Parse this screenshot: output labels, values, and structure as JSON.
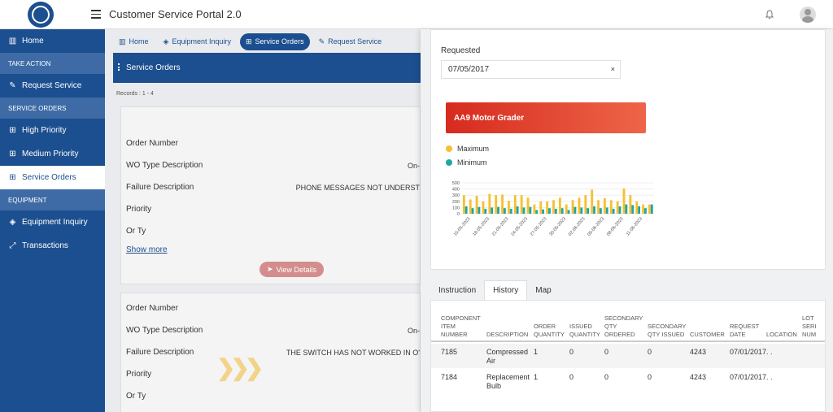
{
  "app": {
    "title": "Customer Service Portal 2.0"
  },
  "sidebar": {
    "items": [
      {
        "label": "Home",
        "icon": "bar-chart-icon"
      },
      {
        "section": "TAKE ACTION"
      },
      {
        "label": "Request Service",
        "icon": "pencil-icon"
      },
      {
        "section": "SERVICE ORDERS"
      },
      {
        "label": "High Priority",
        "icon": "grid-icon"
      },
      {
        "label": "Medium Priority",
        "icon": "grid-icon"
      },
      {
        "label": "Service Orders",
        "icon": "grid-icon",
        "active": true
      },
      {
        "section": "EQUIPMENT"
      },
      {
        "label": "Equipment Inquiry",
        "icon": "layers-icon"
      },
      {
        "label": "Transactions",
        "icon": "expand-icon"
      }
    ]
  },
  "tabs": [
    {
      "label": "Home",
      "icon": "bar-chart-icon"
    },
    {
      "label": "Equipment Inquiry",
      "icon": "layers-icon"
    },
    {
      "label": "Service Orders",
      "icon": "grid-icon",
      "active": true
    },
    {
      "label": "Request Service",
      "icon": "pencil-icon"
    }
  ],
  "orders": {
    "header": "Service Orders",
    "records": "Records : 1 - 4",
    "cards": [
      {
        "order_number_label": "Order Number",
        "wo_type_label": "WO Type Description",
        "wo_type_value": "On-",
        "failure_label": "Failure Description",
        "failure_value": "PHONE MESSAGES NOT UNDERST",
        "priority_label": "Priority",
        "or_ty_label": "Or Ty",
        "show_more": "Show more",
        "view_details": "View Details"
      },
      {
        "order_number_label": "Order Number",
        "wo_type_label": "WO Type Description",
        "wo_type_value": "On-",
        "failure_label": "Failure Description",
        "failure_value": "THE SWITCH HAS NOT WORKED IN O'",
        "priority_label": "Priority",
        "or_ty_label": "Or Ty"
      }
    ]
  },
  "detail": {
    "requested_label": "Requested",
    "requested_value": "07/05/2017",
    "clear": "×",
    "banner": "AA9 Motor Grader",
    "legend": [
      {
        "label": "Maximum",
        "color": "#f6c02f"
      },
      {
        "label": "Minimum",
        "color": "#1ea6a6"
      }
    ],
    "tabs": [
      "Instruction",
      "History",
      "Map"
    ],
    "active_tab": "History",
    "table": {
      "headers": [
        "COMPONENT ITEM NUMBER",
        "DESCRIPTION",
        "ORDER QUANTITY",
        "ISSUED QUANTITY",
        "SECONDARY QTY ORDERED",
        "SECONDARY QTY ISSUED",
        "CUSTOMER",
        "REQUEST DATE",
        "LOCATION",
        "LOT SERI NUM"
      ],
      "rows": [
        [
          "7185",
          "Compressed Air",
          "1",
          "0",
          "0",
          "0",
          "4243",
          "07/01/2017",
          ". .",
          ""
        ],
        [
          "7184",
          "Replacement Bulb",
          "1",
          "0",
          "0",
          "0",
          "4243",
          "07/01/2017",
          ". .",
          ""
        ]
      ]
    }
  },
  "chart_data": {
    "type": "bar",
    "y_ticks": [
      "500",
      "400",
      "300",
      "200",
      "100",
      "0"
    ],
    "ylim": [
      0,
      500
    ],
    "x_tick_labels": [
      "15-05-2023",
      "18-05-2023",
      "21-05-2023",
      "24-05-2023",
      "27-05-2023",
      "30-05-2023",
      "02-06-2023",
      "05-06-2023",
      "08-06-2023",
      "11-06-2023"
    ],
    "series": [
      {
        "name": "Maximum",
        "values": [
          300,
          230,
          290,
          200,
          320,
          300,
          310,
          210,
          300,
          300,
          260,
          150,
          200,
          200,
          220,
          260,
          150,
          220,
          260,
          300,
          390,
          220,
          250,
          220,
          200,
          410,
          300,
          200,
          150,
          150
        ]
      },
      {
        "name": "Minimum",
        "values": [
          120,
          90,
          110,
          80,
          100,
          110,
          90,
          80,
          120,
          100,
          110,
          60,
          70,
          90,
          80,
          90,
          60,
          110,
          100,
          90,
          120,
          90,
          100,
          80,
          120,
          150,
          140,
          120,
          90,
          150
        ]
      }
    ]
  }
}
